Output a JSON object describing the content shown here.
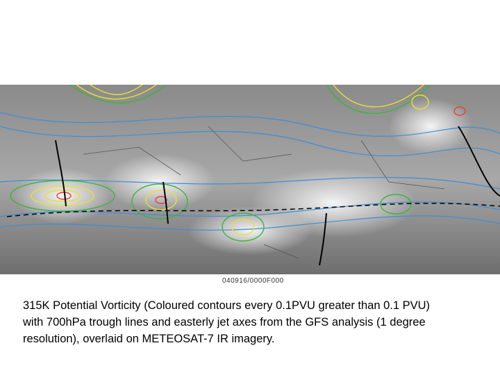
{
  "image": {
    "stamp": "040916/0000F000"
  },
  "caption": {
    "lines": [
      "315K Potential Vorticity (Coloured contours every 0.1PVU greater than 0.1 PVU)",
      "with 700hPa trough lines and easterly jet axes from the GFS analysis (1 degree",
      "resolution), overlaid on METEOSAT-7 IR imagery."
    ]
  }
}
